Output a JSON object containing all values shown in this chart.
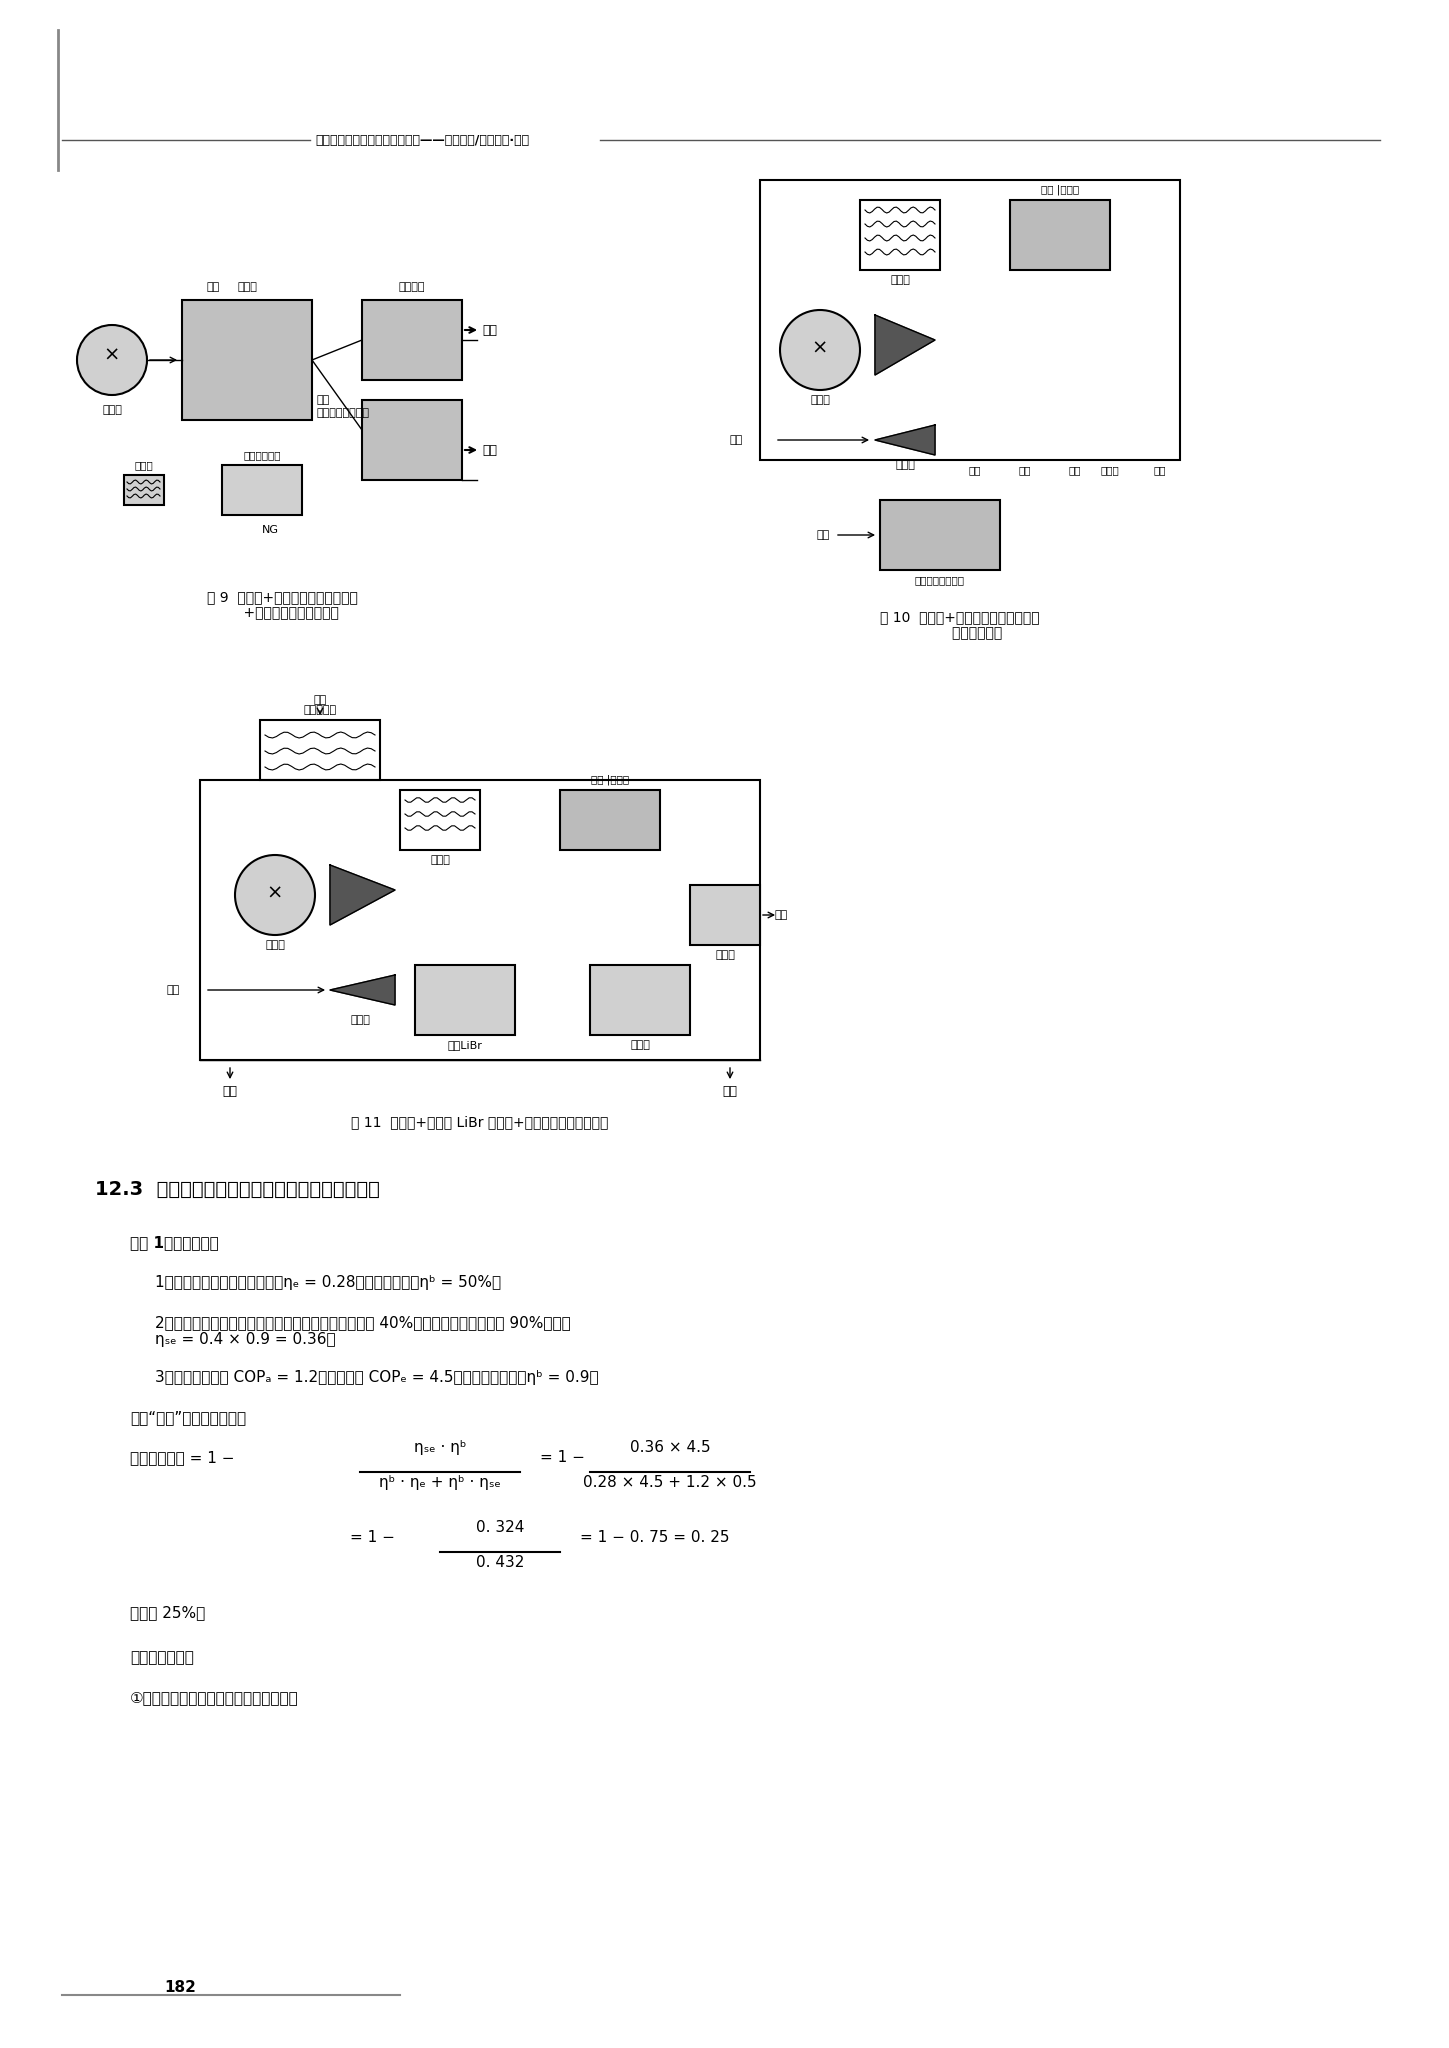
{
  "background_color": "#ffffff",
  "page_width": 14.49,
  "page_height": 20.48,
  "header_text": "全国民用建筑工程设计技术措施——节能专篇/暖通空调·动力",
  "page_number": "182",
  "fig9_caption": "图 9  内燃机+余热直燃机（补燃型）\n    +电制冷机的联供示意图",
  "fig10_caption": "图 10  微燃机+余热直燃机（补燃型）\n        的联供示意图",
  "fig11_caption": "图 11  微燃机+热水型 LiBr 制冷机+电制冷机的联供示意图",
  "section_title": "12.3  燃气冷热电联供系统的能量消耗分析计算例",
  "example_title": "《例 1》设定条件：",
  "condition1": "1）所选用的燃气轮机发电效率ηₑ = 0.28，余热利用效率ηᵇ = 50%；",
  "condition2": "2）电网公司以目前煤电为主的各地区较高的发电效率 40%计算，电网输配效率按 90%计算，\nηₛₑ = 0.4 × 0.9 = 0.36；",
  "condition3": "3）渴化锂制冷机 COPₐ = 1.2，电制冷机 COPₑ = 4.5，燃气锅炉热效率ηᵇ = 0.9。",
  "calc_intro": "计算“联供”系统的节能率：",
  "formula_heat_label": "供热期节能率 = 1 −",
  "formula_cooling_label": "供冷期节能率：",
  "result1": "= 1 − 0.324/0.432 = 1 − 0.75 = 0.25",
  "energy_saving_25": "节能率 25%。",
  "cooling_period": "供冷期节能率：",
  "cold_load_note": "①冷负荷全部由余热渴化锂制冷供应时："
}
